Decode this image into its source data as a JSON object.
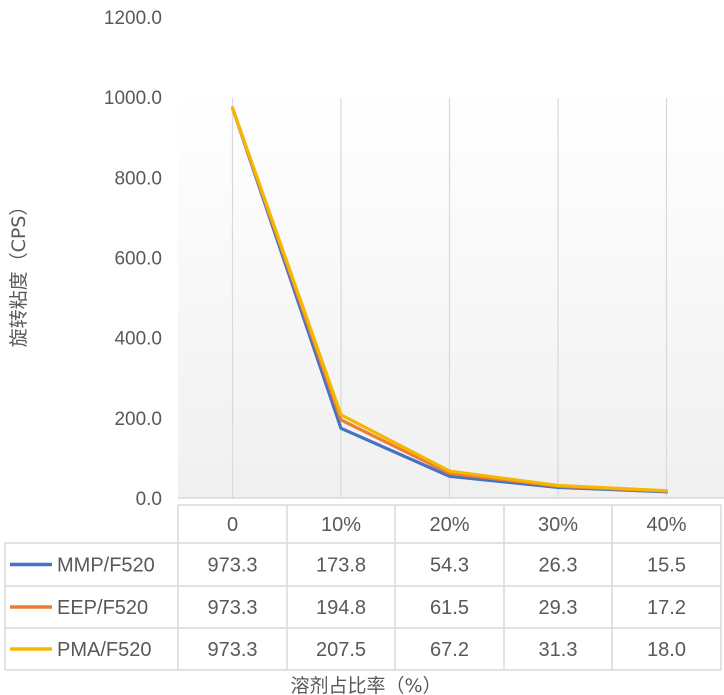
{
  "chart_data": {
    "type": "line",
    "title": "",
    "xlabel": "溶剂占比率（%）",
    "ylabel": "旋转粘度（CPS）",
    "categories": [
      "0",
      "10%",
      "20%",
      "30%",
      "40%"
    ],
    "ylim": [
      0,
      1200
    ],
    "yticks": [
      "0.0",
      "200.0",
      "400.0",
      "600.0",
      "800.0",
      "1000.0",
      "1200.0"
    ],
    "ytick_values": [
      0,
      200,
      400,
      600,
      800,
      1000,
      1200
    ],
    "grid": "vertical",
    "legend": "data-table",
    "series": [
      {
        "name": "MMP/F520",
        "color": "#4472C4",
        "values": [
          973.3,
          173.8,
          54.3,
          26.3,
          15.5
        ],
        "labels": [
          "973.3",
          "173.8",
          "54.3",
          "26.3",
          "15.5"
        ]
      },
      {
        "name": "EEP/F520",
        "color": "#ED7D31",
        "values": [
          973.3,
          194.8,
          61.5,
          29.3,
          17.2
        ],
        "labels": [
          "973.3",
          "194.8",
          "61.5",
          "29.3",
          "17.2"
        ]
      },
      {
        "name": "PMA/F520",
        "color": "#F5B800",
        "values": [
          973.3,
          207.5,
          67.2,
          31.3,
          18.0
        ],
        "labels": [
          "973.3",
          "207.5",
          "67.2",
          "31.3",
          "18.0"
        ]
      }
    ]
  }
}
